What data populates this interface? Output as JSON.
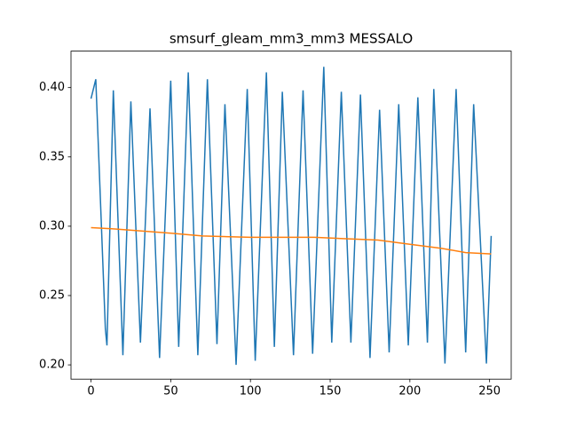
{
  "chart_data": {
    "type": "line",
    "title": "smsurf_gleam_mm3_mm3 MESSALO",
    "series": [
      {
        "color": "#1f77b4",
        "x": [
          0,
          3,
          9,
          10,
          14,
          20,
          25,
          31,
          37,
          43,
          50,
          55,
          61,
          67,
          73,
          79,
          84,
          91,
          98,
          103,
          110,
          115,
          120,
          127,
          133,
          139,
          146,
          151,
          157,
          163,
          169,
          175,
          181,
          187,
          193,
          199,
          205,
          211,
          215,
          222,
          229,
          235,
          240,
          248,
          251
        ],
        "values": [
          0.392,
          0.406,
          0.226,
          0.214,
          0.398,
          0.207,
          0.39,
          0.216,
          0.385,
          0.205,
          0.405,
          0.213,
          0.411,
          0.207,
          0.406,
          0.215,
          0.388,
          0.2,
          0.399,
          0.203,
          0.411,
          0.213,
          0.397,
          0.207,
          0.398,
          0.208,
          0.415,
          0.216,
          0.397,
          0.216,
          0.395,
          0.205,
          0.384,
          0.209,
          0.388,
          0.214,
          0.393,
          0.216,
          0.399,
          0.201,
          0.399,
          0.209,
          0.388,
          0.201,
          0.293
        ]
      },
      {
        "color": "#ff7f0e",
        "x": [
          0,
          15,
          50,
          70,
          100,
          140,
          160,
          180,
          200,
          220,
          235,
          251
        ],
        "values": [
          0.299,
          0.298,
          0.295,
          0.293,
          0.292,
          0.292,
          0.291,
          0.29,
          0.287,
          0.284,
          0.281,
          0.28
        ]
      }
    ],
    "xlim": [
      -12.55,
      263.55
    ],
    "xticks": [
      0,
      50,
      100,
      150,
      200,
      250
    ],
    "ylim": [
      0.1897,
      0.4263
    ],
    "yticks": [
      {
        "value": 0.2,
        "label": "0.20"
      },
      {
        "value": 0.25,
        "label": "0.25"
      },
      {
        "value": 0.3,
        "label": "0.30"
      },
      {
        "value": 0.35,
        "label": "0.35"
      },
      {
        "value": 0.4,
        "label": "0.40"
      }
    ],
    "grid": false
  }
}
